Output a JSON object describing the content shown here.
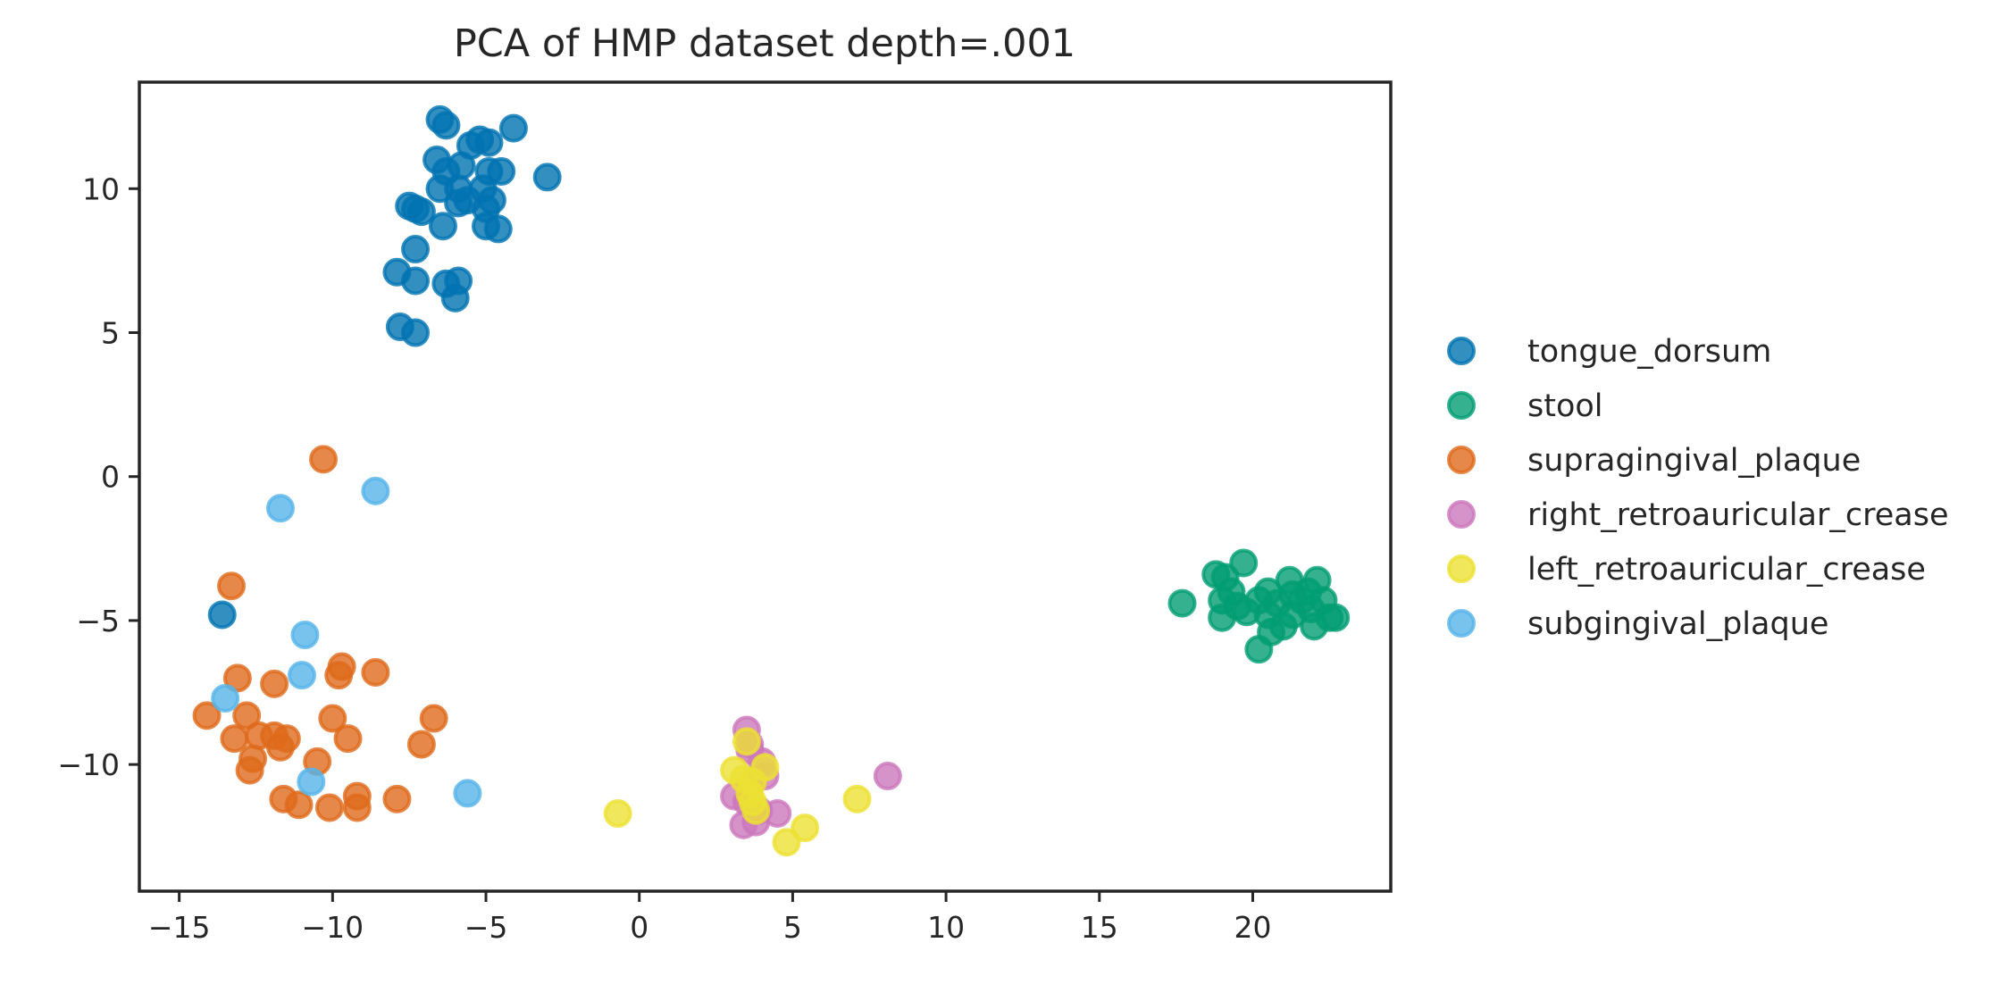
{
  "chart_data": {
    "type": "scatter",
    "title": "PCA of HMP dataset depth=.001",
    "xlabel": "",
    "ylabel": "",
    "xlim": [
      -16.3,
      24.5
    ],
    "ylim": [
      -14.4,
      13.7
    ],
    "xticks": [
      -15,
      -10,
      -5,
      0,
      5,
      10,
      15,
      20
    ],
    "yticks": [
      -10,
      -5,
      0,
      5,
      10
    ],
    "xtick_labels": [
      "−15",
      "−10",
      "−5",
      "0",
      "5",
      "10",
      "15",
      "20"
    ],
    "ytick_labels": [
      "−10",
      "−5",
      "0",
      "5",
      "10"
    ],
    "grid": false,
    "legend_position": "right, outside plot",
    "series": [
      {
        "name": "tongue_dorsum",
        "color": "#0173b2",
        "points": [
          [
            -6.5,
            12.4
          ],
          [
            -6.3,
            12.2
          ],
          [
            -5.5,
            11.5
          ],
          [
            -5.2,
            11.7
          ],
          [
            -4.9,
            11.6
          ],
          [
            -4.1,
            12.1
          ],
          [
            -6.6,
            11.0
          ],
          [
            -6.3,
            10.6
          ],
          [
            -5.8,
            10.8
          ],
          [
            -4.9,
            10.6
          ],
          [
            -4.5,
            10.6
          ],
          [
            -6.5,
            10.0
          ],
          [
            -5.9,
            10.0
          ],
          [
            -5.6,
            9.6
          ],
          [
            -5.1,
            10.0
          ],
          [
            -4.8,
            9.6
          ],
          [
            -5.0,
            9.3
          ],
          [
            -7.5,
            9.4
          ],
          [
            -7.3,
            9.3
          ],
          [
            -7.1,
            9.2
          ],
          [
            -5.9,
            9.5
          ],
          [
            -6.4,
            8.7
          ],
          [
            -5.0,
            8.7
          ],
          [
            -4.6,
            8.6
          ],
          [
            -7.3,
            7.9
          ],
          [
            -7.9,
            7.1
          ],
          [
            -7.3,
            6.8
          ],
          [
            -6.3,
            6.7
          ],
          [
            -5.9,
            6.8
          ],
          [
            -6.0,
            6.2
          ],
          [
            -7.8,
            5.2
          ],
          [
            -7.3,
            5.0
          ],
          [
            -3.0,
            10.4
          ],
          [
            -13.6,
            -4.8
          ]
        ]
      },
      {
        "name": "stool",
        "color": "#029e73",
        "points": [
          [
            17.7,
            -4.4
          ],
          [
            18.8,
            -3.4
          ],
          [
            19.1,
            -3.5
          ],
          [
            19.7,
            -3.0
          ],
          [
            19.0,
            -4.3
          ],
          [
            19.3,
            -4.0
          ],
          [
            19.5,
            -4.5
          ],
          [
            19.0,
            -4.9
          ],
          [
            19.8,
            -4.7
          ],
          [
            20.2,
            -4.3
          ],
          [
            20.5,
            -4.0
          ],
          [
            20.5,
            -4.8
          ],
          [
            20.8,
            -4.4
          ],
          [
            21.2,
            -3.6
          ],
          [
            21.3,
            -4.1
          ],
          [
            21.3,
            -4.8
          ],
          [
            21.6,
            -4.3
          ],
          [
            21.8,
            -4.0
          ],
          [
            22.1,
            -3.6
          ],
          [
            21.9,
            -4.6
          ],
          [
            22.3,
            -4.3
          ],
          [
            22.5,
            -4.9
          ],
          [
            22.7,
            -4.9
          ],
          [
            21.0,
            -5.2
          ],
          [
            22.0,
            -5.2
          ],
          [
            20.6,
            -5.4
          ],
          [
            20.2,
            -6.0
          ]
        ]
      },
      {
        "name": "supragingival_plaque",
        "color": "#de6a1b",
        "points": [
          [
            -10.3,
            0.6
          ],
          [
            -13.3,
            -3.8
          ],
          [
            -13.1,
            -7.0
          ],
          [
            -11.9,
            -7.2
          ],
          [
            -9.7,
            -6.6
          ],
          [
            -9.8,
            -6.9
          ],
          [
            -8.6,
            -6.8
          ],
          [
            -14.1,
            -8.3
          ],
          [
            -12.8,
            -8.3
          ],
          [
            -10.0,
            -8.4
          ],
          [
            -6.7,
            -8.4
          ],
          [
            -13.2,
            -9.1
          ],
          [
            -12.4,
            -9.0
          ],
          [
            -11.9,
            -9.0
          ],
          [
            -11.5,
            -9.1
          ],
          [
            -11.7,
            -9.4
          ],
          [
            -9.5,
            -9.1
          ],
          [
            -7.1,
            -9.3
          ],
          [
            -12.6,
            -9.8
          ],
          [
            -12.7,
            -10.2
          ],
          [
            -10.5,
            -9.9
          ],
          [
            -11.6,
            -11.2
          ],
          [
            -11.1,
            -11.4
          ],
          [
            -10.1,
            -11.5
          ],
          [
            -9.2,
            -11.1
          ],
          [
            -9.2,
            -11.5
          ],
          [
            -7.9,
            -11.2
          ]
        ]
      },
      {
        "name": "right_retroauricular_crease",
        "color": "#cc78bc",
        "points": [
          [
            3.5,
            -8.8
          ],
          [
            3.6,
            -9.3
          ],
          [
            3.6,
            -9.5
          ],
          [
            4.0,
            -9.9
          ],
          [
            4.1,
            -10.4
          ],
          [
            3.7,
            -10.6
          ],
          [
            3.1,
            -11.1
          ],
          [
            3.5,
            -11.3
          ],
          [
            3.9,
            -11.6
          ],
          [
            4.5,
            -11.7
          ],
          [
            3.4,
            -12.1
          ],
          [
            3.8,
            -12.0
          ],
          [
            8.1,
            -10.4
          ]
        ]
      },
      {
        "name": "left_retroauricular_crease",
        "color": "#ece133",
        "points": [
          [
            -0.7,
            -11.7
          ],
          [
            3.5,
            -9.2
          ],
          [
            3.1,
            -10.2
          ],
          [
            3.4,
            -10.5
          ],
          [
            3.7,
            -10.6
          ],
          [
            4.1,
            -10.1
          ],
          [
            3.6,
            -11.0
          ],
          [
            3.7,
            -11.3
          ],
          [
            3.8,
            -11.6
          ],
          [
            4.8,
            -12.7
          ],
          [
            5.4,
            -12.2
          ],
          [
            7.1,
            -11.2
          ]
        ]
      },
      {
        "name": "subgingival_plaque",
        "color": "#56b4e9",
        "points": [
          [
            -11.7,
            -1.1
          ],
          [
            -8.6,
            -0.5
          ],
          [
            -10.9,
            -5.5
          ],
          [
            -11.0,
            -6.9
          ],
          [
            -13.5,
            -7.7
          ],
          [
            -10.7,
            -10.6
          ],
          [
            -5.6,
            -11.0
          ]
        ]
      }
    ]
  }
}
